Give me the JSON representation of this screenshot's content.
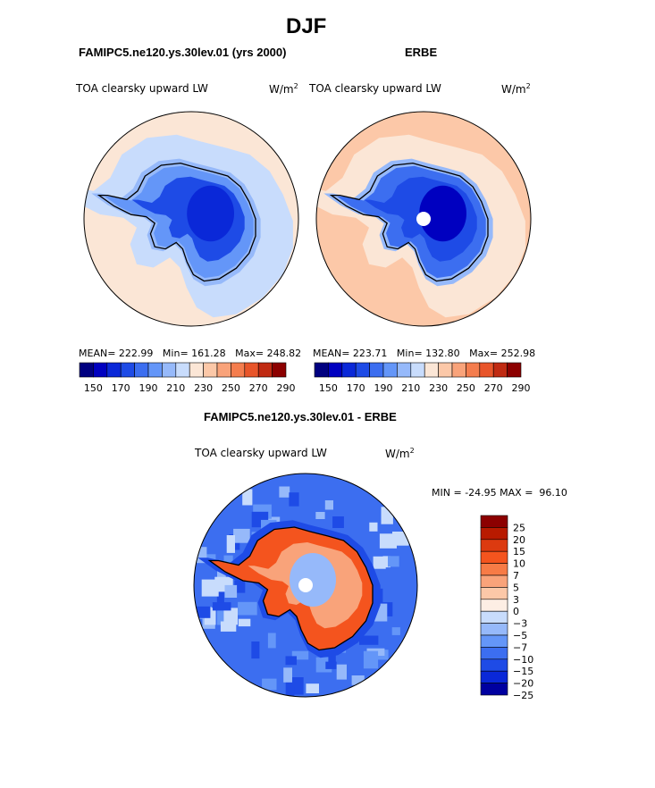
{
  "chart_data": {
    "type": "heatmap",
    "projection": "south-polar-stereographic",
    "title": "DJF",
    "panels": [
      {
        "id": "model",
        "header": "FAMIPC5.ne120.ys.30lev.01 (yrs 2000)",
        "variable": "TOA clearsky upward LW",
        "units": "W/m",
        "units_exp": "2",
        "stats": {
          "mean_label": "MEAN=",
          "mean": "222.99",
          "min_label": "Min=",
          "min": "161.28",
          "max_label": "Max=",
          "max": "248.82"
        },
        "colorbar_ticks": [
          "150",
          "170",
          "190",
          "210",
          "230",
          "250",
          "270",
          "290"
        ],
        "colorbar_range": [
          140,
          300
        ],
        "regions": [
          {
            "name": "ocean-outer",
            "value": 233
          },
          {
            "name": "sea-ice-band",
            "value": 226
          },
          {
            "name": "coastal-ice",
            "value": 210
          },
          {
            "name": "ice-sheet-edge",
            "value": 200
          },
          {
            "name": "ice-sheet-inner",
            "value": 185
          },
          {
            "name": "plateau",
            "value": 170
          }
        ]
      },
      {
        "id": "obs",
        "header": "ERBE",
        "variable": "TOA clearsky upward LW",
        "units": "W/m",
        "units_exp": "2",
        "stats": {
          "mean_label": "MEAN=",
          "mean": "223.71",
          "min_label": "Min=",
          "min": "132.80",
          "max_label": "Max=",
          "max": "252.98"
        },
        "colorbar_ticks": [
          "150",
          "170",
          "190",
          "210",
          "230",
          "250",
          "270",
          "290"
        ],
        "colorbar_range": [
          140,
          300
        ],
        "regions": [
          {
            "name": "ocean-outer",
            "value": 247
          },
          {
            "name": "ocean-mid",
            "value": 240
          },
          {
            "name": "sea-ice-band",
            "value": 233
          },
          {
            "name": "coastal-ice",
            "value": 210
          },
          {
            "name": "ice-sheet-edge",
            "value": 195
          },
          {
            "name": "ice-sheet-inner",
            "value": 180
          },
          {
            "name": "plateau",
            "value": 165
          }
        ]
      },
      {
        "id": "diff",
        "header": "FAMIPC5.ne120.ys.30lev.01 - ERBE",
        "variable": "TOA clearsky upward LW",
        "units": "W/m",
        "units_exp": "2",
        "stats": {
          "min_label": "MIN =",
          "min": "-24.95",
          "max_label": "MAX =",
          "max": "96.10"
        },
        "colorbar_levels": [
          "25",
          "20",
          "15",
          "10",
          "7",
          "5",
          "3",
          "0",
          "−3",
          "−5",
          "−7",
          "−10",
          "−15",
          "−20",
          "−25"
        ],
        "regions": [
          {
            "name": "ocean",
            "value": -8
          },
          {
            "name": "ocean-patches",
            "value": -4
          },
          {
            "name": "coast-ring",
            "value": -12
          },
          {
            "name": "ice-sheet",
            "value": 10
          },
          {
            "name": "ice-sheet-interior",
            "value": 6
          },
          {
            "name": "plateau-patch",
            "value": -4
          }
        ]
      }
    ]
  },
  "colors": {
    "div15": [
      "#000080",
      "#0000c0",
      "#0a28d8",
      "#1e4be6",
      "#3c6ef0",
      "#6496f8",
      "#96b9fa",
      "#c8dcfc",
      "#fbe6d6",
      "#fcc8a8",
      "#f9a37a",
      "#f47d4e",
      "#e8552a",
      "#c02a12",
      "#8c0000"
    ],
    "diffbar": [
      "#8c0000",
      "#b81a00",
      "#dc3a10",
      "#f4541e",
      "#f77b46",
      "#f9a37a",
      "#fcc8a8",
      "#fdeee4",
      "#c8dcfc",
      "#96b9fa",
      "#6496f8",
      "#3c6ef0",
      "#1e4be6",
      "#0a28d8",
      "#0000a0"
    ]
  }
}
